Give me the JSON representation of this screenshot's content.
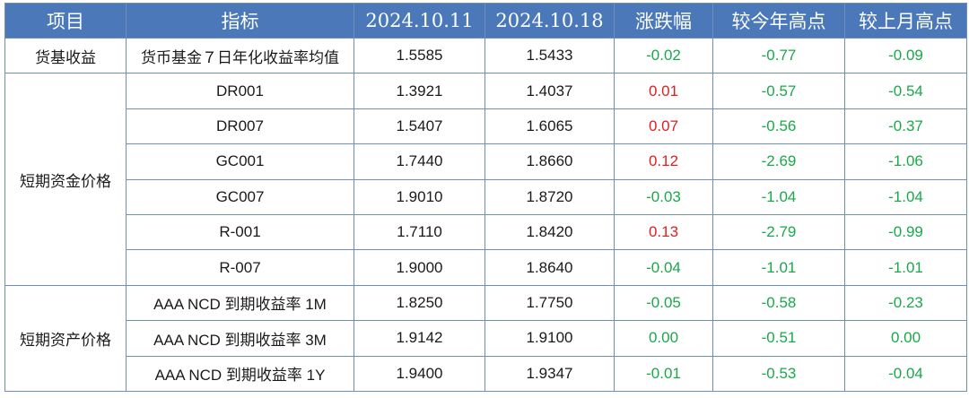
{
  "headers": [
    "项目",
    "指标",
    "2024.10.11",
    "2024.10.18",
    "涨跌幅",
    "较今年高点",
    "较上月高点"
  ],
  "groups": [
    {
      "category": "货基收益",
      "rows": [
        {
          "name": "货币基金７日年化收益率均值",
          "v1": "1.5585",
          "v2": "1.5433",
          "chg": "-0.02",
          "ytd": "-0.77",
          "mth": "-0.09"
        }
      ]
    },
    {
      "category": "短期资金价格",
      "rows": [
        {
          "name": "DR001",
          "v1": "1.3921",
          "v2": "1.4037",
          "chg": "0.01",
          "ytd": "-0.57",
          "mth": "-0.54"
        },
        {
          "name": "DR007",
          "v1": "1.5407",
          "v2": "1.6065",
          "chg": "0.07",
          "ytd": "-0.56",
          "mth": "-0.37"
        },
        {
          "name": "GC001",
          "v1": "1.7440",
          "v2": "1.8660",
          "chg": "0.12",
          "ytd": "-2.69",
          "mth": "-1.06"
        },
        {
          "name": "GC007",
          "v1": "1.9010",
          "v2": "1.8720",
          "chg": "-0.03",
          "ytd": "-1.04",
          "mth": "-1.04"
        },
        {
          "name": "R-001",
          "v1": "1.7110",
          "v2": "1.8420",
          "chg": "0.13",
          "ytd": "-2.79",
          "mth": "-0.99"
        },
        {
          "name": "R-007",
          "v1": "1.9000",
          "v2": "1.8640",
          "chg": "-0.04",
          "ytd": "-1.01",
          "mth": "-1.01"
        }
      ]
    },
    {
      "category": "短期资产价格",
      "rows": [
        {
          "name": "AAA NCD 到期收益率 1M",
          "v1": "1.8250",
          "v2": "1.7750",
          "chg": "-0.05",
          "ytd": "-0.58",
          "mth": "-0.23"
        },
        {
          "name": "AAA NCD 到期收益率 3M",
          "v1": "1.9142",
          "v2": "1.9100",
          "chg": "0.00",
          "ytd": "-0.51",
          "mth": "0.00"
        },
        {
          "name": "AAA NCD 到期收益率 1Y",
          "v1": "1.9400",
          "v2": "1.9347",
          "chg": "-0.01",
          "ytd": "-0.53",
          "mth": "-0.04"
        }
      ]
    }
  ],
  "colors": {
    "header_bg": "#4a78b8",
    "positive": "#e02020",
    "negative": "#1aa84a",
    "border": "#6f8fb8"
  }
}
